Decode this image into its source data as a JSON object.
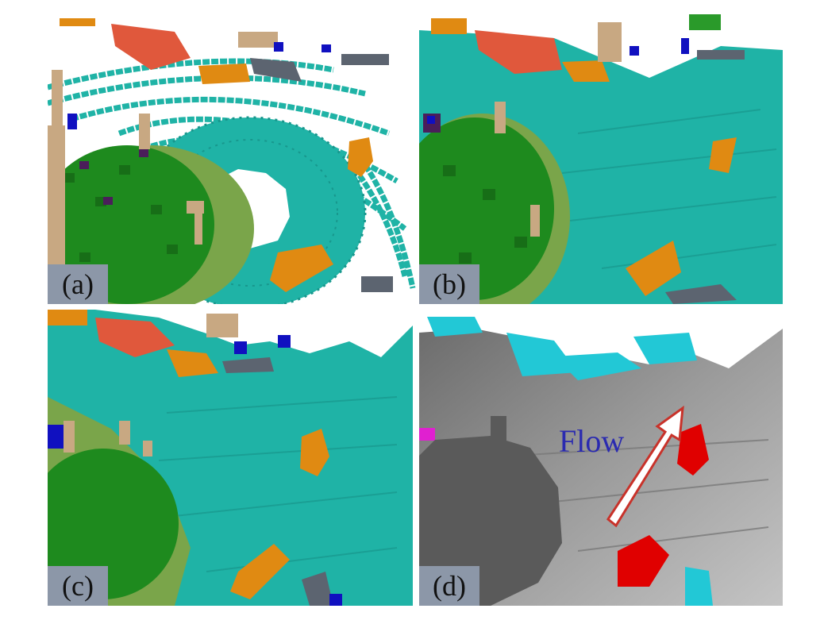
{
  "panels": [
    {
      "id": "a",
      "label": "(a)"
    },
    {
      "id": "b",
      "label": "(b)"
    },
    {
      "id": "c",
      "label": "(c)"
    },
    {
      "id": "d",
      "label": "(d)",
      "annotation": "Flow"
    }
  ],
  "colors": {
    "road": "#1fb3a6",
    "vegetation": "#1e8a1e",
    "terrain": "#7aa54a",
    "trunk": "#c8a882",
    "car": "#e08a12",
    "building": "#e0583c",
    "pole": "#5c6470",
    "sign": "#1010c0",
    "flow_static": "#8a8a8a",
    "flow_dynamic": "#e00000",
    "flow_cyan": "#22c8d6",
    "flow_arrow_border": "#c8322a"
  },
  "icons": [
    "flow-arrow-icon"
  ]
}
